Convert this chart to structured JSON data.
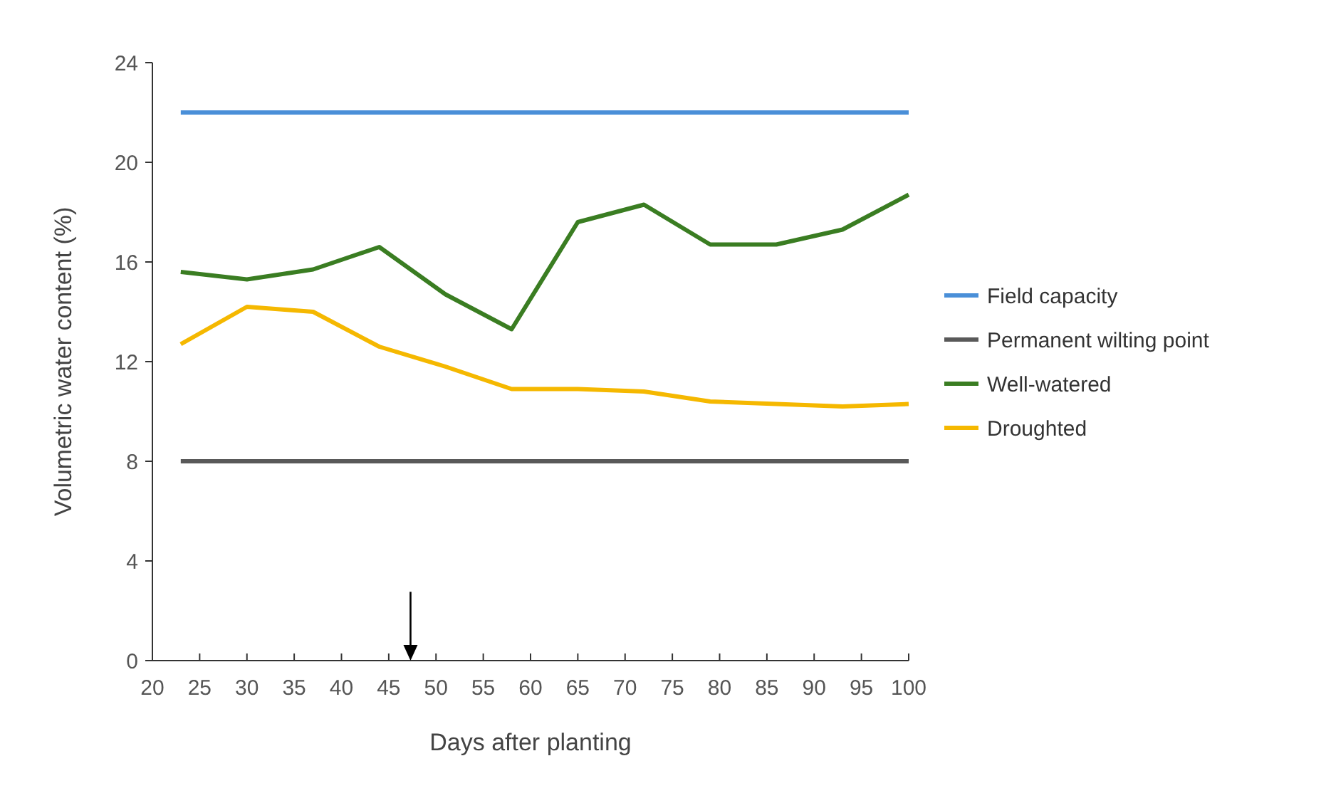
{
  "chart_data": {
    "type": "line",
    "xlabel": "Days after planting",
    "ylabel": "Volumetric water content (%)",
    "xlim": [
      20,
      100
    ],
    "xticks": [
      20,
      25,
      30,
      35,
      40,
      45,
      50,
      55,
      60,
      65,
      70,
      75,
      80,
      85,
      90,
      95,
      100
    ],
    "ylim": [
      0,
      24
    ],
    "yticks": [
      0,
      4,
      8,
      12,
      16,
      20,
      24
    ],
    "grid": false,
    "legend": "right",
    "marker": "none",
    "series": [
      {
        "name": "Field capacity",
        "color": "#4a8fd8",
        "x": [
          23,
          100
        ],
        "values": [
          22,
          22
        ]
      },
      {
        "name": "Permanent wilting point",
        "color": "#595959",
        "x": [
          23,
          100
        ],
        "values": [
          8,
          8
        ]
      },
      {
        "name": "Well-watered",
        "color": "#3a7d22",
        "x": [
          23,
          30,
          37,
          44,
          51,
          58,
          65,
          72,
          79,
          86,
          93,
          100
        ],
        "values": [
          15.6,
          15.3,
          15.7,
          16.6,
          14.7,
          13.3,
          17.6,
          18.3,
          16.7,
          16.7,
          17.3,
          18.7
        ]
      },
      {
        "name": "Droughted",
        "color": "#f5b800",
        "x": [
          23,
          30,
          37,
          44,
          51,
          58,
          65,
          72,
          79,
          86,
          93,
          100
        ],
        "values": [
          12.7,
          14.2,
          14,
          12.6,
          11.8,
          10.9,
          10.9,
          10.8,
          10.4,
          10.3,
          10.2,
          10.3
        ]
      }
    ]
  }
}
